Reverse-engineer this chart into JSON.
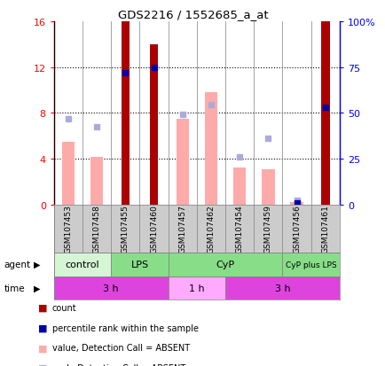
{
  "title": "GDS2216 / 1552685_a_at",
  "samples": [
    "GSM107453",
    "GSM107458",
    "GSM107455",
    "GSM107460",
    "GSM107457",
    "GSM107462",
    "GSM107454",
    "GSM107459",
    "GSM107456",
    "GSM107461"
  ],
  "count_values": [
    0,
    0,
    16,
    14,
    0,
    0,
    0,
    0,
    0,
    16
  ],
  "rank_pct_values": [
    null,
    null,
    72,
    75,
    null,
    null,
    null,
    null,
    1,
    53
  ],
  "pink_bar_values": [
    5.5,
    4.2,
    0,
    0,
    7.5,
    9.8,
    3.2,
    3.1,
    0.2,
    0
  ],
  "blue_sq_left_values": [
    7.5,
    6.8,
    null,
    null,
    7.9,
    8.7,
    4.2,
    5.8,
    0.4,
    null
  ],
  "agent_groups": [
    {
      "label": "control",
      "start": 0,
      "end": 2,
      "color": "#d5f5d5"
    },
    {
      "label": "LPS",
      "start": 2,
      "end": 4,
      "color": "#88dd88"
    },
    {
      "label": "CyP",
      "start": 4,
      "end": 8,
      "color": "#88dd88"
    },
    {
      "label": "CyP plus LPS",
      "start": 8,
      "end": 10,
      "color": "#88dd88"
    }
  ],
  "time_groups": [
    {
      "label": "3 h",
      "start": 0,
      "end": 4,
      "color": "#dd44dd"
    },
    {
      "label": "1 h",
      "start": 4,
      "end": 6,
      "color": "#ffaaff"
    },
    {
      "label": "3 h",
      "start": 6,
      "end": 10,
      "color": "#dd44dd"
    }
  ],
  "ylim_left": [
    0,
    16
  ],
  "ylim_right": [
    0,
    100
  ],
  "yticks_left": [
    0,
    4,
    8,
    12,
    16
  ],
  "ytick_labels_left": [
    "0",
    "4",
    "8",
    "12",
    "16"
  ],
  "ytick_labels_right": [
    "0",
    "25",
    "50",
    "75",
    "100%"
  ],
  "bar_color": "#aa0000",
  "pink_bar_color": "#ffaaaa",
  "blue_sq_color": "#aaaadd",
  "blue_rank_dot_color": "#0000aa",
  "grid_color": "#000000"
}
